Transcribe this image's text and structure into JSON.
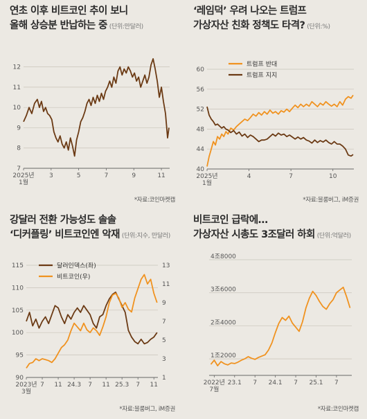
{
  "colors": {
    "brown": "#6b3a14",
    "orange": "#f0921f",
    "grid": "#c9c4ba",
    "axis": "#666666",
    "text": "#555555"
  },
  "panel1": {
    "title_line1": "연초 이후 비트코인 추이 보니",
    "title_line2": "올해 상승분 반납하는 중",
    "unit": "(단위:만달러)",
    "source": "*자료:코인마켓캡"
  },
  "panel2": {
    "title_line1": "‘레임덕’ 우려 나오는 트럼프",
    "title_line2": "가상자산 친화 정책도 타격?",
    "unit": "(단위:%)",
    "source": "*자료:블룸버그, iM증권"
  },
  "panel3": {
    "title_line1": "강달러 전환 가능성도 솔솔",
    "title_line2": "‘디커플링’ 비트코인엔 악재",
    "unit": "(단위:지수, 만달러)",
    "source": "*자료:블룸버그, iM증권"
  },
  "panel4": {
    "title_line1": "비트코인 급락에…",
    "title_line2": "가상자산 시총도 3조달러 하회",
    "unit": "(단위:억달러)",
    "source": "*자료:코인마켓캡"
  },
  "chart_data": [
    {
      "type": "line",
      "xlabel": "",
      "ylabel": "",
      "x_ticks": [
        "2025년\n1월",
        "3",
        "5",
        "7",
        "9",
        "11"
      ],
      "x_tick_pos": [
        0,
        2,
        4,
        6,
        8,
        10
      ],
      "xlim": [
        0,
        10.6
      ],
      "y_ticks": [
        7,
        8,
        9,
        10,
        11,
        12
      ],
      "ylim": [
        7,
        12.5
      ],
      "series": [
        {
          "color": "#6b3a14",
          "x": [
            0,
            0.2,
            0.4,
            0.6,
            0.8,
            1.0,
            1.15,
            1.3,
            1.45,
            1.6,
            1.75,
            1.9,
            2.05,
            2.2,
            2.35,
            2.5,
            2.65,
            2.8,
            2.95,
            3.1,
            3.25,
            3.4,
            3.55,
            3.7,
            3.85,
            4.0,
            4.15,
            4.3,
            4.45,
            4.6,
            4.75,
            4.9,
            5.05,
            5.2,
            5.35,
            5.5,
            5.65,
            5.8,
            5.95,
            6.1,
            6.25,
            6.4,
            6.55,
            6.7,
            6.85,
            7.0,
            7.15,
            7.3,
            7.45,
            7.6,
            7.75,
            7.9,
            8.05,
            8.2,
            8.35,
            8.5,
            8.65,
            8.8,
            8.95,
            9.1,
            9.25,
            9.4,
            9.55,
            9.7,
            9.85,
            10.0,
            10.15,
            10.3,
            10.45,
            10.55
          ],
          "values": [
            9.3,
            9.6,
            10.0,
            9.7,
            10.2,
            10.4,
            10.0,
            10.3,
            9.8,
            10.0,
            9.7,
            9.6,
            9.4,
            8.8,
            8.5,
            8.3,
            8.6,
            8.2,
            8.0,
            8.3,
            7.9,
            8.5,
            8.1,
            7.6,
            8.4,
            8.8,
            9.3,
            9.5,
            9.8,
            10.2,
            10.4,
            10.1,
            10.5,
            10.2,
            10.6,
            10.3,
            10.7,
            10.4,
            10.8,
            11.0,
            11.3,
            11.0,
            11.5,
            11.2,
            11.8,
            12.0,
            11.6,
            11.9,
            11.7,
            12.0,
            11.8,
            11.5,
            11.7,
            11.3,
            11.5,
            11.0,
            11.3,
            11.6,
            11.2,
            11.5,
            12.1,
            12.4,
            11.9,
            11.3,
            10.5,
            11.0,
            10.3,
            9.7,
            8.5,
            9.0
          ]
        }
      ]
    },
    {
      "type": "line",
      "xlabel": "",
      "ylabel": "",
      "x_ticks": [
        "2025년\n1월",
        "4",
        "7",
        "10"
      ],
      "x_tick_pos": [
        0,
        3,
        6,
        9
      ],
      "xlim": [
        0,
        10.5
      ],
      "y_ticks": [
        40,
        44,
        48,
        52,
        56,
        60
      ],
      "ylim": [
        40,
        60
      ],
      "legend": {
        "position": "top-left"
      },
      "series": [
        {
          "name": "트럼프 반대",
          "color": "#f0921f",
          "x": [
            0,
            0.15,
            0.3,
            0.45,
            0.6,
            0.75,
            0.9,
            1.05,
            1.2,
            1.35,
            1.5,
            1.7,
            1.9,
            2.1,
            2.3,
            2.5,
            2.7,
            2.9,
            3.1,
            3.3,
            3.5,
            3.7,
            3.9,
            4.1,
            4.3,
            4.5,
            4.7,
            4.9,
            5.1,
            5.3,
            5.5,
            5.7,
            5.9,
            6.1,
            6.3,
            6.5,
            6.7,
            6.9,
            7.1,
            7.3,
            7.5,
            7.7,
            7.9,
            8.1,
            8.3,
            8.5,
            8.7,
            8.9,
            9.1,
            9.3,
            9.5,
            9.7,
            9.9,
            10.1,
            10.3,
            10.45
          ],
          "values": [
            40.5,
            42.5,
            44.0,
            45.5,
            44.8,
            46.5,
            46.0,
            47.0,
            46.5,
            47.5,
            47.0,
            48.2,
            47.8,
            48.5,
            49.0,
            49.5,
            50.0,
            49.7,
            50.3,
            51.0,
            50.6,
            51.3,
            50.8,
            51.5,
            51.0,
            51.8,
            51.2,
            51.5,
            51.0,
            51.7,
            51.4,
            52.0,
            51.5,
            52.2,
            52.8,
            52.3,
            53.0,
            52.5,
            53.0,
            52.6,
            53.5,
            53.0,
            52.5,
            53.2,
            52.8,
            53.5,
            53.0,
            52.6,
            53.0,
            52.5,
            53.5,
            52.8,
            54.0,
            54.5,
            54.2,
            54.8
          ]
        },
        {
          "name": "트럼프 지지",
          "color": "#6b3a14",
          "x": [
            0,
            0.15,
            0.3,
            0.45,
            0.6,
            0.75,
            0.9,
            1.05,
            1.2,
            1.35,
            1.5,
            1.7,
            1.9,
            2.1,
            2.3,
            2.5,
            2.7,
            2.9,
            3.1,
            3.3,
            3.5,
            3.7,
            3.9,
            4.1,
            4.3,
            4.5,
            4.7,
            4.9,
            5.1,
            5.3,
            5.5,
            5.7,
            5.9,
            6.1,
            6.3,
            6.5,
            6.7,
            6.9,
            7.1,
            7.3,
            7.5,
            7.7,
            7.9,
            8.1,
            8.3,
            8.5,
            8.7,
            8.9,
            9.1,
            9.3,
            9.5,
            9.7,
            9.9,
            10.1,
            10.3,
            10.45
          ],
          "values": [
            52.5,
            50.8,
            50.0,
            49.5,
            48.8,
            49.0,
            48.6,
            48.2,
            48.5,
            48.0,
            47.8,
            47.3,
            47.7,
            47.0,
            47.4,
            46.6,
            47.0,
            46.3,
            46.8,
            46.5,
            46.0,
            45.5,
            45.8,
            45.8,
            46.0,
            46.5,
            47.0,
            46.6,
            47.2,
            46.8,
            47.0,
            46.5,
            46.8,
            46.4,
            46.0,
            46.4,
            46.0,
            46.3,
            45.8,
            45.6,
            45.2,
            45.8,
            45.3,
            45.7,
            45.4,
            45.8,
            45.3,
            45.0,
            45.5,
            45.0,
            45.0,
            44.6,
            44.0,
            42.8,
            42.6,
            42.9
          ]
        }
      ]
    },
    {
      "type": "line",
      "xlabel": "",
      "ylabel": "",
      "x_ticks": [
        "2023년\n3월",
        "7",
        "11",
        "24.3",
        "7",
        "11",
        "25.3",
        "7",
        "11"
      ],
      "x_tick_pos": [
        0,
        4,
        8,
        12,
        16,
        20,
        24,
        28,
        32
      ],
      "xlim": [
        0,
        33
      ],
      "y_left": {
        "ticks": [
          90,
          95,
          100,
          105,
          110,
          115
        ],
        "lim": [
          90,
          115
        ]
      },
      "y_right": {
        "ticks": [
          1,
          3,
          5,
          7,
          9,
          11,
          13
        ],
        "lim": [
          1,
          13
        ]
      },
      "legend": {
        "position": "top-left"
      },
      "series": [
        {
          "name": "달러인덱스(좌)",
          "color": "#6b3a14",
          "axis": "left",
          "x": [
            0,
            0.8,
            1.6,
            2.4,
            3.2,
            4.0,
            4.8,
            5.6,
            6.4,
            7.2,
            8.0,
            8.8,
            9.6,
            10.4,
            11.2,
            12.0,
            12.8,
            13.6,
            14.4,
            15.2,
            16.0,
            16.8,
            17.6,
            18.4,
            19.2,
            20.0,
            20.8,
            21.6,
            22.4,
            23.2,
            24.0,
            24.8,
            25.6,
            26.4,
            27.2,
            28.0,
            28.8,
            29.6,
            30.4,
            31.2,
            32.0,
            32.8
          ],
          "values": [
            102.5,
            104.5,
            101.5,
            103.0,
            101.0,
            102.5,
            103.5,
            102.0,
            104.0,
            106.0,
            105.5,
            103.5,
            102.0,
            104.0,
            103.0,
            104.5,
            105.5,
            104.5,
            106.0,
            105.0,
            104.0,
            102.0,
            101.0,
            103.5,
            104.0,
            106.0,
            107.5,
            108.5,
            109.0,
            107.5,
            106.0,
            104.5,
            100.5,
            99.0,
            98.0,
            97.5,
            98.5,
            97.5,
            97.8,
            98.5,
            99.0,
            100.0
          ]
        },
        {
          "name": "비트코인(우)",
          "color": "#f0921f",
          "axis": "right",
          "x": [
            0,
            0.8,
            1.6,
            2.4,
            3.2,
            4.0,
            4.8,
            5.6,
            6.4,
            7.2,
            8.0,
            8.8,
            9.6,
            10.4,
            11.2,
            12.0,
            12.8,
            13.6,
            14.4,
            15.2,
            16.0,
            16.8,
            17.6,
            18.4,
            19.2,
            20.0,
            20.8,
            21.6,
            22.4,
            23.2,
            24.0,
            24.8,
            25.6,
            26.4,
            27.2,
            28.0,
            28.8,
            29.6,
            30.4,
            31.2,
            32.0,
            32.8
          ],
          "values": [
            2.0,
            2.5,
            2.6,
            3.0,
            2.8,
            3.0,
            2.9,
            2.8,
            2.6,
            3.0,
            3.6,
            4.2,
            4.5,
            5.0,
            6.0,
            6.8,
            6.4,
            6.0,
            6.8,
            6.1,
            5.8,
            6.3,
            6.0,
            5.5,
            6.4,
            7.5,
            9.0,
            9.8,
            10.0,
            9.5,
            8.5,
            9.0,
            8.3,
            8.0,
            9.5,
            10.5,
            11.5,
            12.0,
            11.0,
            11.5,
            10.0,
            9.0
          ]
        }
      ]
    },
    {
      "type": "line",
      "xlabel": "",
      "ylabel": "",
      "x_ticks": [
        "2022년\n7월",
        "23.1",
        "7",
        "24.1",
        "7",
        "25.1",
        "7"
      ],
      "x_tick_pos": [
        0,
        6,
        12,
        18,
        24,
        30,
        36
      ],
      "xlim": [
        -1.5,
        40.5
      ],
      "y_ticks": [
        "1조2000",
        "2조4000",
        "3조6000",
        "4조8000"
      ],
      "y_tick_values": [
        12000,
        24000,
        36000,
        48000
      ],
      "ylim": [
        6000,
        48000
      ],
      "series": [
        {
          "color": "#f0921f",
          "x": [
            -1,
            0,
            1,
            2,
            3,
            4,
            5,
            6,
            7,
            8,
            9,
            10,
            11,
            12,
            13,
            14,
            15,
            16,
            17,
            18,
            19,
            20,
            21,
            22,
            23,
            24,
            25,
            26,
            27,
            28,
            29,
            30,
            31,
            32,
            33,
            34,
            35,
            36,
            37,
            38,
            39,
            40
          ],
          "values": [
            10000,
            11500,
            9500,
            11000,
            10200,
            9800,
            10500,
            10300,
            10800,
            11500,
            12000,
            12800,
            12200,
            11800,
            12500,
            13000,
            13500,
            15200,
            17800,
            21500,
            24800,
            27000,
            26000,
            27500,
            25000,
            23500,
            22000,
            25500,
            30500,
            34000,
            36500,
            35000,
            32800,
            31000,
            30000,
            32000,
            33500,
            36000,
            37000,
            38000,
            34500,
            30500
          ]
        }
      ]
    }
  ]
}
